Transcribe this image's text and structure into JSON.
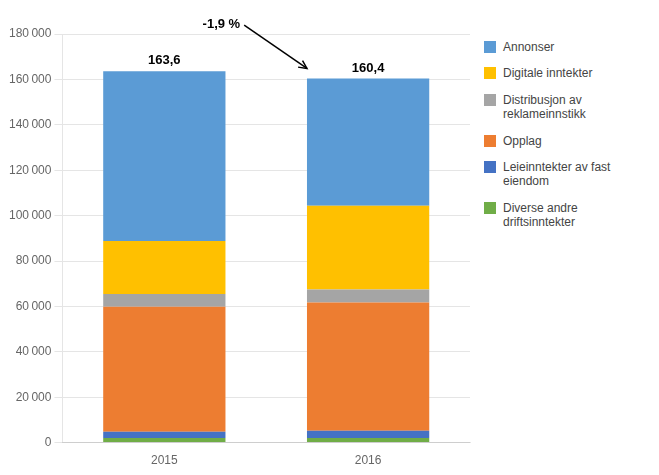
{
  "chart_data": {
    "type": "bar",
    "stacked": true,
    "categories": [
      "2015",
      "2016"
    ],
    "series": [
      {
        "name": "Diverse andre\ndriftsinntekter",
        "color": "#70ad47",
        "values": [
          2000,
          2000
        ]
      },
      {
        "name": "Leieinntekter av fast\neiendom",
        "color": "#4472c4",
        "values": [
          2800,
          3200
        ]
      },
      {
        "name": "Opplag",
        "color": "#ed7d31",
        "values": [
          55000,
          56500
        ]
      },
      {
        "name": "Distribusjon av\nreklameinnstikk",
        "color": "#a5a5a5",
        "values": [
          5700,
          5700
        ]
      },
      {
        "name": "Digitale inntekter",
        "color": "#ffc000",
        "values": [
          23300,
          36900
        ]
      },
      {
        "name": "Annonser",
        "color": "#5b9bd5",
        "values": [
          74800,
          56100
        ]
      }
    ],
    "totals": [
      163600,
      160400
    ],
    "total_labels": [
      "163,6",
      "160,4"
    ],
    "annotations": [
      {
        "text": "-1,9 %"
      }
    ],
    "ylim": [
      0,
      180000
    ],
    "yticks": [
      0,
      {
        "value": 20000,
        "label": "20 000"
      },
      {
        "value": 40000,
        "label": "40 000"
      },
      {
        "value": 60000,
        "label": "60 000"
      },
      {
        "value": 80000,
        "label": "80 000"
      },
      {
        "value": 100000,
        "label": "100 000"
      },
      {
        "value": 120000,
        "label": "120 000"
      },
      {
        "value": 140000,
        "label": "140 000"
      },
      {
        "value": 160000,
        "label": "160 000"
      },
      {
        "value": 180000,
        "label": "180 000"
      }
    ],
    "grid": true,
    "legend": "right"
  }
}
